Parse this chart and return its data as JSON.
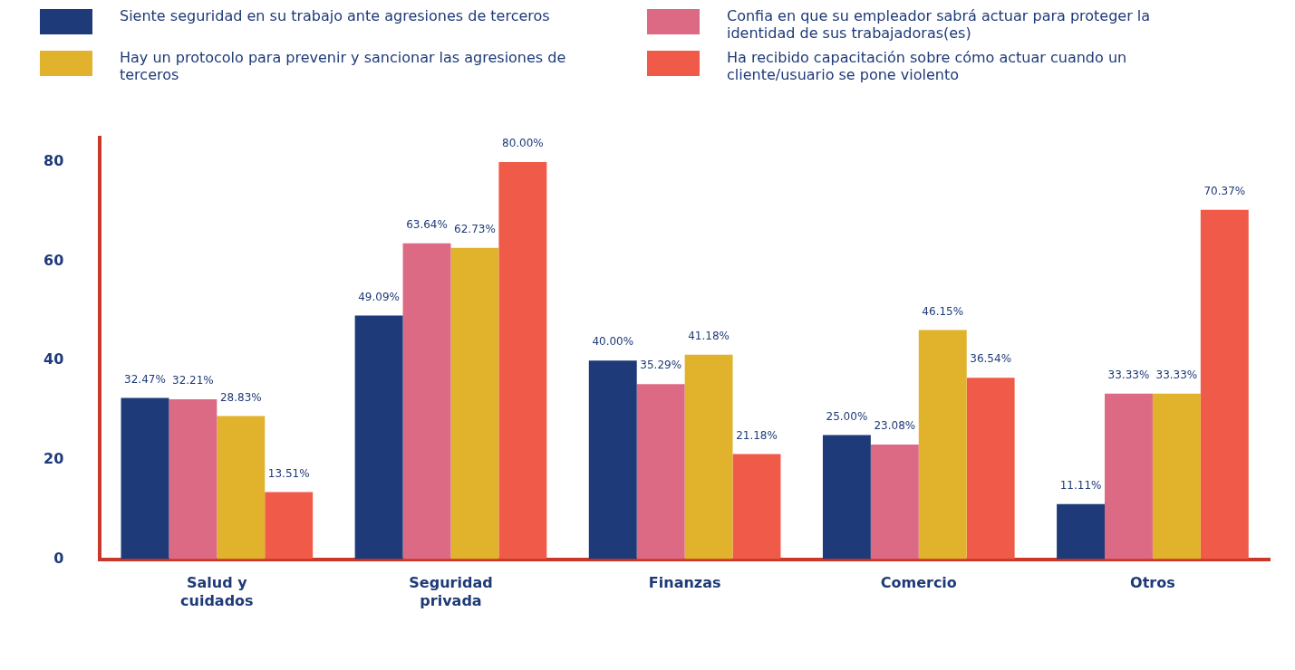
{
  "chart_data": {
    "type": "bar",
    "categories": [
      "Salud y cuidados",
      "Seguridad privada",
      "Finanzas",
      "Comercio",
      "Otros"
    ],
    "series": [
      {
        "name": "Siente seguridad en su trabajo ante agresiones de terceros",
        "color": "#1e3a78",
        "values": [
          32.47,
          49.09,
          40.0,
          25.0,
          11.11
        ],
        "value_labels": [
          "32.47%",
          "49.09%",
          "40.00%",
          "25.00%",
          "11.11%"
        ]
      },
      {
        "name": "Confia en que su empleador sabrá actuar para proteger la identidad de sus trabajadoras(es)",
        "color": "#dd6a84",
        "values": [
          32.21,
          63.64,
          35.29,
          23.08,
          33.33
        ],
        "value_labels": [
          "32.21%",
          "63.64%",
          "35.29%",
          "23.08%",
          "33.33%"
        ]
      },
      {
        "name": "Hay un protocolo para prevenir y sancionar las agresiones de terceros",
        "color": "#e1b22c",
        "values": [
          28.83,
          62.73,
          41.18,
          46.15,
          33.33
        ],
        "value_labels": [
          "28.83%",
          "62.73%",
          "41.18%",
          "46.15%",
          "33.33%"
        ]
      },
      {
        "name": "Ha recibido capacitación sobre cómo actuar cuando un cliente/usuario se pone violento",
        "color": "#f05a48",
        "values": [
          13.51,
          80.0,
          21.18,
          36.54,
          70.37
        ],
        "value_labels": [
          "13.51%",
          "80.00%",
          "21.18%",
          "36.54%",
          "70.37%"
        ]
      }
    ],
    "ylim": [
      0,
      85
    ],
    "yticks": [
      0,
      20,
      40,
      60,
      80
    ],
    "grid": false,
    "legend": "top"
  }
}
